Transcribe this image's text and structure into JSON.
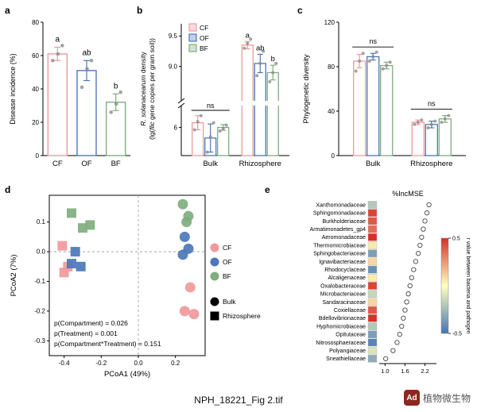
{
  "figure": {
    "caption": "NPH_18221_Fig 2.tif",
    "watermark": {
      "logo_text": "Ad",
      "text": "植物微生物"
    }
  },
  "palette": {
    "CF": "#F0999B",
    "OF": "#4C77B8",
    "BF": "#7FAE7F"
  },
  "chart_data": [
    {
      "panel": "a",
      "type": "bar",
      "categories": [
        "CF",
        "OF",
        "BF"
      ],
      "values": [
        61,
        51,
        32
      ],
      "errors": [
        4,
        6,
        5
      ],
      "points": [
        [
          57,
          61,
          66
        ],
        [
          41,
          52,
          57
        ],
        [
          26,
          31,
          38
        ]
      ],
      "sig_letters": [
        "a",
        "ab",
        "b"
      ],
      "ylabel": "Disease incidence (%)",
      "ylim": [
        0,
        80
      ],
      "yticks": [
        0,
        20,
        40,
        60,
        80
      ]
    },
    {
      "panel": "b",
      "type": "bar",
      "groups": [
        "Bulk",
        "Rhizosphere"
      ],
      "series": [
        "CF",
        "OF",
        "BF"
      ],
      "values": [
        [
          6.2,
          5.55,
          6.0
        ],
        [
          9.35,
          9.05,
          8.9
        ]
      ],
      "errors": [
        [
          0.3,
          0.6,
          0.12
        ],
        [
          0.06,
          0.15,
          0.12
        ]
      ],
      "points": [
        [
          [
            5.9,
            6.25,
            6.5
          ],
          [
            4.95,
            5.6,
            6.2
          ],
          [
            5.85,
            5.95,
            6.1
          ]
        ],
        [
          [
            9.3,
            9.38,
            9.45
          ],
          [
            8.85,
            9.05,
            9.25
          ],
          [
            8.75,
            8.9,
            9.05
          ]
        ]
      ],
      "sig": {
        "Bulk": "ns",
        "Rhizosphere": [
          "a",
          "ab",
          "b"
        ]
      },
      "axis_break": true,
      "yticks_upper": [
        9.0,
        9.5
      ],
      "yticks_lower": [
        6
      ],
      "legend": [
        "CF",
        "OF",
        "BF"
      ],
      "ylabel_lines": [
        [
          {
            "t": "R. solanacearum",
            "i": true
          },
          {
            "t": " density",
            "i": false
          }
        ],
        [
          {
            "t": "(lg(",
            "i": false
          },
          {
            "t": "flic",
            "i": true
          },
          {
            "t": " gene copies per gram soil))",
            "i": false
          }
        ]
      ]
    },
    {
      "panel": "c",
      "type": "bar",
      "groups": [
        "Bulk",
        "Rhizosphere"
      ],
      "series": [
        "CF",
        "OF",
        "BF"
      ],
      "values": [
        [
          85,
          89,
          81
        ],
        [
          30,
          28,
          33
        ]
      ],
      "errors": [
        [
          6,
          3,
          3
        ],
        [
          2,
          3,
          3
        ]
      ],
      "points": [
        [
          [
            76,
            85,
            92
          ],
          [
            85,
            89,
            93
          ],
          [
            78,
            81,
            84
          ]
        ],
        [
          [
            28,
            30,
            32
          ],
          [
            25,
            28,
            31
          ],
          [
            30,
            33,
            36
          ]
        ]
      ],
      "sig": {
        "Bulk": "ns",
        "Rhizosphere": "ns"
      },
      "ylabel": "Phylogenetic diversity",
      "ylim": [
        0,
        120
      ],
      "yticks": [
        0,
        40,
        80,
        120
      ]
    },
    {
      "panel": "d",
      "type": "scatter",
      "xlabel": "PCoA1 (49%)",
      "ylabel": "PCoA2 (7%)",
      "xlim": [
        -0.48,
        0.36
      ],
      "ylim": [
        -0.35,
        0.19
      ],
      "xticks": [
        -0.4,
        -0.2,
        0.0,
        0.2
      ],
      "yticks": [
        0.1,
        0.0,
        -0.1,
        -0.2,
        -0.3
      ],
      "stats": [
        "p(Compartment) = 0.026",
        "p(Treatment) = 0.001",
        "p(Compartment*Treatment) = 0.151"
      ],
      "legend_treatments": [
        "CF",
        "OF",
        "BF"
      ],
      "legend_shapes": [
        {
          "label": "Bulk",
          "shape": "circle"
        },
        {
          "label": "Rhizosphere",
          "shape": "square"
        }
      ],
      "points": [
        {
          "treatment": "CF",
          "compartment": "Rhizosphere",
          "x": -0.41,
          "y": 0.02
        },
        {
          "treatment": "CF",
          "compartment": "Rhizosphere",
          "x": -0.38,
          "y": -0.05
        },
        {
          "treatment": "CF",
          "compartment": "Rhizosphere",
          "x": -0.4,
          "y": -0.07
        },
        {
          "treatment": "CF",
          "compartment": "Bulk",
          "x": 0.28,
          "y": -0.12
        },
        {
          "treatment": "CF",
          "compartment": "Bulk",
          "x": 0.25,
          "y": -0.2
        },
        {
          "treatment": "CF",
          "compartment": "Bulk",
          "x": 0.3,
          "y": -0.21
        },
        {
          "treatment": "OF",
          "compartment": "Rhizosphere",
          "x": -0.34,
          "y": 0.0
        },
        {
          "treatment": "OF",
          "compartment": "Rhizosphere",
          "x": -0.36,
          "y": -0.04
        },
        {
          "treatment": "OF",
          "compartment": "Rhizosphere",
          "x": -0.31,
          "y": -0.05
        },
        {
          "treatment": "OF",
          "compartment": "Bulk",
          "x": 0.25,
          "y": 0.05
        },
        {
          "treatment": "OF",
          "compartment": "Bulk",
          "x": 0.27,
          "y": 0.01
        },
        {
          "treatment": "OF",
          "compartment": "Bulk",
          "x": 0.24,
          "y": -0.01
        },
        {
          "treatment": "BF",
          "compartment": "Rhizosphere",
          "x": -0.36,
          "y": 0.13
        },
        {
          "treatment": "BF",
          "compartment": "Rhizosphere",
          "x": -0.3,
          "y": 0.08
        },
        {
          "treatment": "BF",
          "compartment": "Rhizosphere",
          "x": -0.26,
          "y": 0.09
        },
        {
          "treatment": "BF",
          "compartment": "Bulk",
          "x": 0.24,
          "y": 0.16
        },
        {
          "treatment": "BF",
          "compartment": "Bulk",
          "x": 0.27,
          "y": 0.12
        },
        {
          "treatment": "BF",
          "compartment": "Bulk",
          "x": 0.26,
          "y": 0.1
        }
      ]
    },
    {
      "panel": "e",
      "type": "dot-heatmap",
      "title": "%IncMSE",
      "families": [
        "Xanthomonadaceae",
        "Sphingomonadaceae",
        "Burkholderiaceae",
        "Armatimonadetes_gp4",
        "Aeromonadaceae",
        "Thermomicrobiaceae",
        "Sphingobacteriaceae",
        "Ignavibacteriaceae",
        "Rhodocyclaceae",
        "Alcaligenaceae",
        "Oxalobacteraceae",
        "Microbacteriaceae",
        "Sandaracinaceae",
        "Coxiellaceae",
        "Bdellovibrionaceae",
        "Hyphomicrobiaceae",
        "Opitutaceae",
        "Nitrososphaeraceae",
        "Polyangiaceae",
        "Sneathiellaceae"
      ],
      "inc_mse": [
        2.32,
        2.26,
        2.2,
        2.15,
        2.1,
        2.05,
        2.0,
        1.92,
        1.86,
        1.8,
        1.75,
        1.7,
        1.65,
        1.6,
        1.55,
        1.5,
        1.44,
        1.36,
        1.24,
        1.02
      ],
      "r_values": [
        -0.2,
        0.45,
        0.4,
        0.35,
        0.5,
        0.05,
        -0.35,
        0.1,
        -0.4,
        0.05,
        0.45,
        -0.15,
        0.1,
        0.4,
        0.5,
        -0.2,
        -0.35,
        -0.45,
        -0.1,
        -0.3
      ],
      "xlim": [
        0.92,
        2.45
      ],
      "xticks": [
        1.0,
        1.6,
        2.2
      ],
      "colorbar": {
        "label": "r value between bacteria and pathogen",
        "ticks": [
          0.5,
          -0.5
        ],
        "range": [
          -0.5,
          0.5
        ]
      }
    }
  ]
}
